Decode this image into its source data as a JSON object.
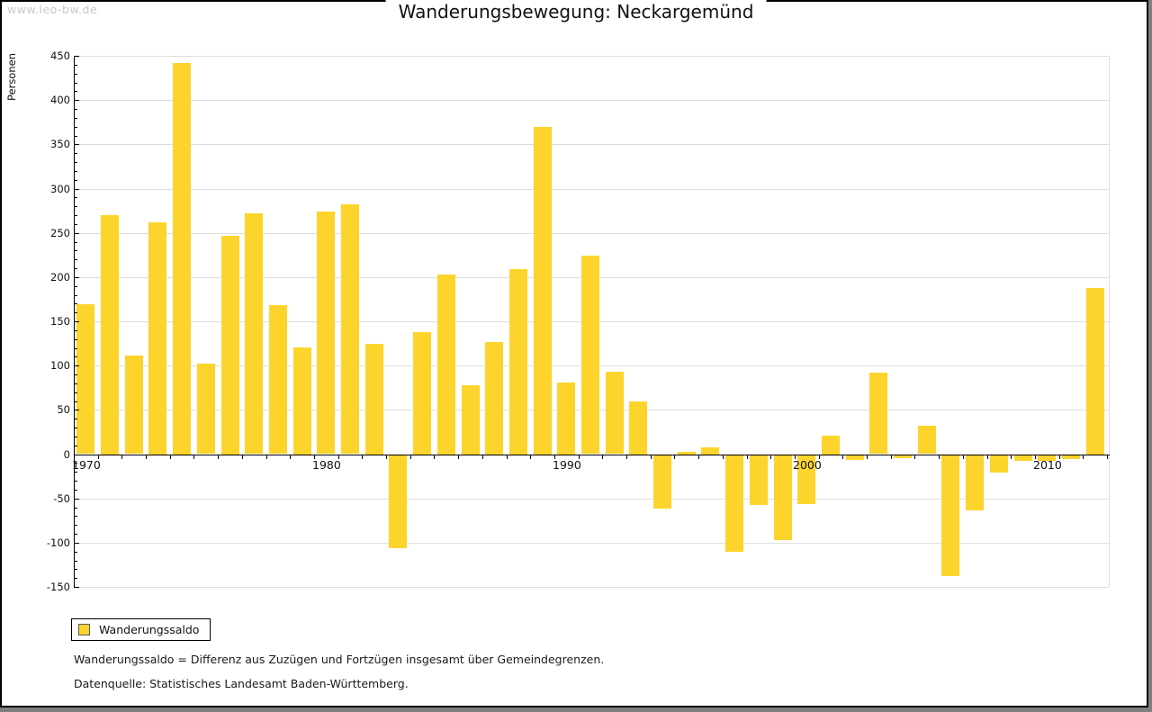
{
  "window": {
    "watermark": "www.leo-bw.de",
    "title": "Wanderungsbewegung: Neckargemünd"
  },
  "legend": {
    "label": "Wanderungssaldo"
  },
  "footer": {
    "line1": "Wanderungssaldo = Differenz aus Zuzügen und Fortzügen insgesamt über Gemeindegrenzen.",
    "line2": "Datenquelle: Statistisches Landesamt Baden-Württemberg."
  },
  "chart_data": {
    "type": "bar",
    "title": "Wanderungsbewegung: Neckargemünd",
    "xlabel": "",
    "ylabel": "Personen",
    "series": [
      {
        "name": "Wanderungssaldo",
        "values": [
          169,
          270,
          111,
          262,
          442,
          102,
          247,
          272,
          168,
          121,
          274,
          282,
          125,
          -105,
          138,
          203,
          78,
          127,
          209,
          370,
          81,
          224,
          93,
          60,
          -60,
          3,
          8,
          -109,
          -56,
          -96,
          -55,
          21,
          -5,
          92,
          -3,
          32,
          -136,
          -62,
          -19,
          -6,
          -6,
          -4,
          188
        ]
      }
    ],
    "x": [
      1970,
      1971,
      1972,
      1973,
      1974,
      1975,
      1976,
      1977,
      1978,
      1979,
      1980,
      1981,
      1982,
      1983,
      1984,
      1985,
      1986,
      1987,
      1988,
      1989,
      1990,
      1991,
      1992,
      1993,
      1994,
      1995,
      1996,
      1997,
      1998,
      1999,
      2000,
      2001,
      2002,
      2003,
      2004,
      2005,
      2006,
      2007,
      2008,
      2009,
      2010,
      2011,
      2012
    ],
    "ylim": [
      -150,
      450
    ],
    "yticks": [
      450,
      400,
      350,
      300,
      250,
      200,
      150,
      100,
      50,
      0,
      -50,
      -100,
      -150
    ],
    "ytick_minor_step": 10,
    "xticks_labeled": [
      "1970",
      "1980",
      "1990",
      "2000",
      "2010"
    ],
    "xtick_years_labeled": [
      1970,
      1980,
      1990,
      2000,
      2010
    ],
    "grid": "horizontal",
    "legend_position": "bottom-left",
    "colors": {
      "bar": "#fcd42c",
      "grid": "#dddddd",
      "axis": "#000000",
      "watermark_text": "#c8c8c8",
      "frame_outer": "#7f7f7f"
    }
  }
}
